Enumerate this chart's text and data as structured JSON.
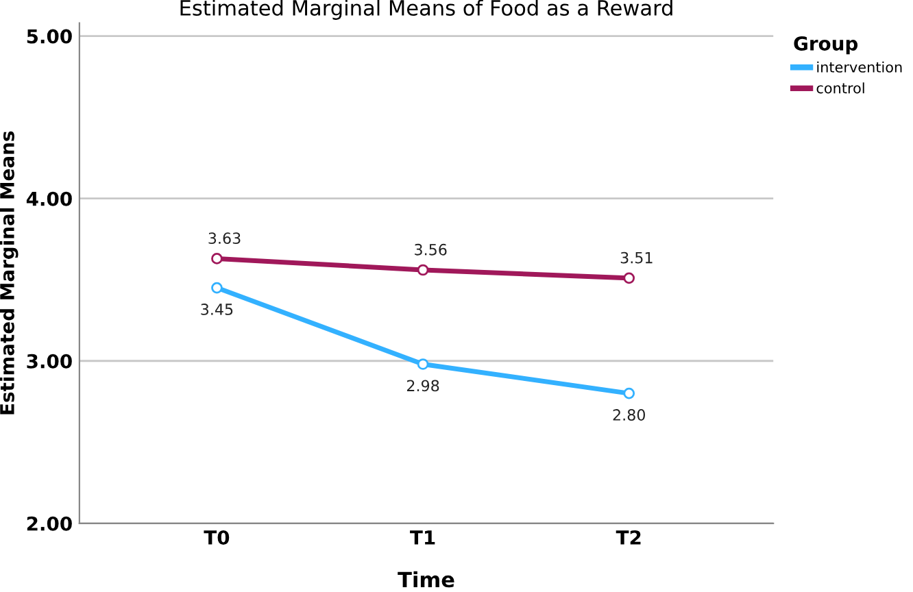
{
  "chart_data": {
    "type": "line",
    "title": "Estimated Marginal Means of Food as a Reward",
    "xlabel": "Time",
    "ylabel": "Estimated Marginal Means",
    "legend_title": "Group",
    "categories": [
      "T0",
      "T1",
      "T2"
    ],
    "series": [
      {
        "name": "intervention",
        "color": "#33b1ff",
        "values": [
          3.45,
          2.98,
          2.8
        ],
        "value_labels": [
          "3.45",
          "2.98",
          "2.80"
        ]
      },
      {
        "name": "control",
        "color": "#a0185a",
        "values": [
          3.63,
          3.56,
          3.51
        ],
        "value_labels": [
          "3.63",
          "3.56",
          "3.51"
        ]
      }
    ],
    "ylim": [
      2,
      5.08
    ],
    "yticks": [
      {
        "value": 2,
        "label": "2.00"
      },
      {
        "value": 3,
        "label": "3.00"
      },
      {
        "value": 4,
        "label": "4.00"
      },
      {
        "value": 5,
        "label": "5.00"
      }
    ],
    "grid": "y",
    "legend": "top right",
    "marker": "circle",
    "line_style": "solid"
  }
}
